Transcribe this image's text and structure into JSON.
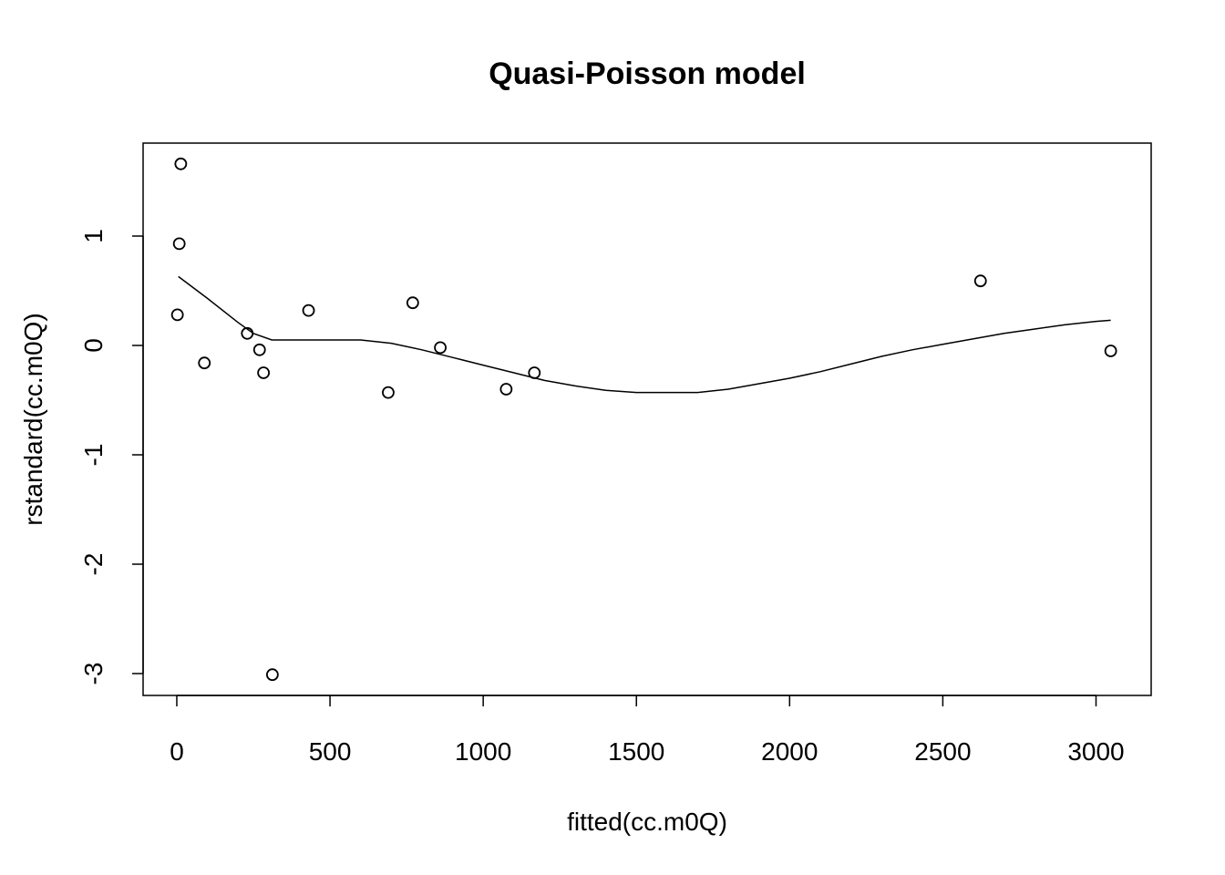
{
  "chart_data": {
    "type": "scatter",
    "title": "Quasi-Poisson model",
    "xlabel": "fitted(cc.m0Q)",
    "ylabel": "rstandard(cc.m0Q)",
    "xlim": [
      -110,
      3180
    ],
    "ylim": [
      -3.2,
      1.85
    ],
    "x_ticks": [
      0,
      500,
      1000,
      1500,
      2000,
      2500,
      3000
    ],
    "y_ticks": [
      -3,
      -2,
      -1,
      0,
      1
    ],
    "grid": false,
    "legend": "none",
    "points": {
      "marker": "open-circle",
      "x": [
        2,
        8,
        13,
        90,
        230,
        270,
        283,
        312,
        430,
        690,
        770,
        860,
        1075,
        1167,
        2623,
        3048
      ],
      "y": [
        0.28,
        0.93,
        1.66,
        -0.16,
        0.11,
        -0.04,
        -0.25,
        -3.01,
        0.32,
        -0.43,
        0.39,
        -0.02,
        -0.4,
        -0.25,
        0.59,
        -0.05
      ]
    },
    "smooth_line": {
      "x": [
        5,
        100,
        200,
        250,
        310,
        400,
        600,
        700,
        800,
        900,
        1000,
        1100,
        1200,
        1300,
        1400,
        1500,
        1600,
        1700,
        1800,
        1900,
        2000,
        2100,
        2200,
        2300,
        2400,
        2500,
        2600,
        2700,
        2800,
        2900,
        3000,
        3048
      ],
      "y": [
        0.63,
        0.43,
        0.21,
        0.11,
        0.05,
        0.05,
        0.05,
        0.02,
        -0.04,
        -0.11,
        -0.18,
        -0.25,
        -0.32,
        -0.37,
        -0.41,
        -0.43,
        -0.43,
        -0.43,
        -0.4,
        -0.35,
        -0.3,
        -0.24,
        -0.17,
        -0.1,
        -0.04,
        0.01,
        0.06,
        0.11,
        0.15,
        0.19,
        0.22,
        0.23
      ]
    }
  }
}
